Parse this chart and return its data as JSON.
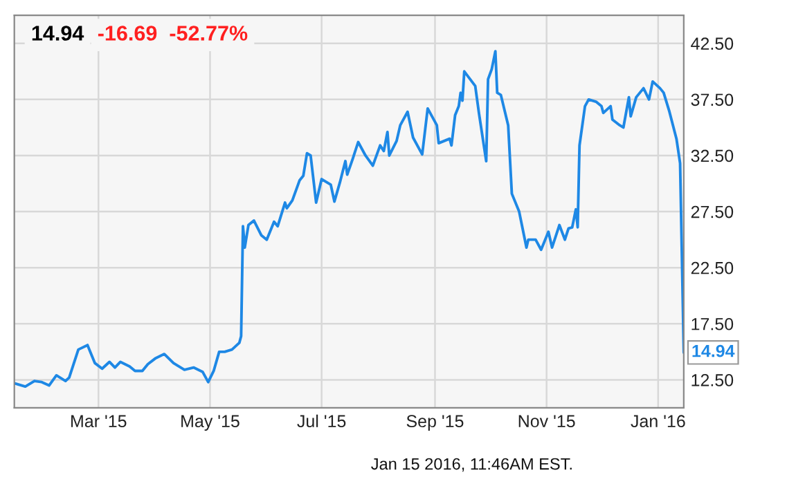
{
  "chart_data": {
    "type": "line",
    "title": "14.94",
    "subtitle": "-16.69  -52.77%",
    "annotations": [
      "Jan 15 2016, 11:46AM EST."
    ],
    "x": [
      "2015-01-14",
      "2015-01-20",
      "2015-01-25",
      "2015-01-29",
      "2015-02-02",
      "2015-02-06",
      "2015-02-11",
      "2015-02-13",
      "2015-02-18",
      "2015-02-23",
      "2015-02-27",
      "2015-03-03",
      "2015-03-07",
      "2015-03-10",
      "2015-03-13",
      "2015-03-18",
      "2015-03-21",
      "2015-03-25",
      "2015-03-28",
      "2015-04-01",
      "2015-04-06",
      "2015-04-11",
      "2015-04-17",
      "2015-04-22",
      "2015-04-27",
      "2015-04-30",
      "2015-05-03",
      "2015-05-06",
      "2015-05-09",
      "2015-05-13",
      "2015-05-17",
      "2015-05-18",
      "2015-05-19",
      "2015-05-20",
      "2015-05-22",
      "2015-05-25",
      "2015-05-29",
      "2015-06-01",
      "2015-06-05",
      "2015-06-07",
      "2015-06-11",
      "2015-06-12",
      "2015-06-15",
      "2015-06-19",
      "2015-06-21",
      "2015-06-23",
      "2015-06-25",
      "2015-06-28",
      "2015-07-01",
      "2015-07-06",
      "2015-07-08",
      "2015-07-11",
      "2015-07-14",
      "2015-07-15",
      "2015-07-18",
      "2015-07-21",
      "2015-07-25",
      "2015-07-29",
      "2015-08-02",
      "2015-08-04",
      "2015-08-06",
      "2015-08-07",
      "2015-08-11",
      "2015-08-13",
      "2015-08-17",
      "2015-08-20",
      "2015-08-25",
      "2015-08-28",
      "2015-09-02",
      "2015-09-03",
      "2015-09-09",
      "2015-09-10",
      "2015-09-12",
      "2015-09-14",
      "2015-09-15",
      "2015-09-16",
      "2015-09-17",
      "2015-09-23",
      "2015-09-25",
      "2015-09-29",
      "2015-09-30",
      "2015-10-02",
      "2015-10-04",
      "2015-10-05",
      "2015-10-07",
      "2015-10-11",
      "2015-10-13",
      "2015-10-17",
      "2015-10-21",
      "2015-10-22",
      "2015-10-26",
      "2015-10-29",
      "2015-11-02",
      "2015-11-04",
      "2015-11-08",
      "2015-11-11",
      "2015-11-13",
      "2015-11-15",
      "2015-11-17",
      "2015-11-18",
      "2015-11-19",
      "2015-11-22",
      "2015-11-24",
      "2015-11-28",
      "2015-12-01",
      "2015-12-02",
      "2015-12-06",
      "2015-12-07",
      "2015-12-11",
      "2015-12-13",
      "2015-12-16",
      "2015-12-17",
      "2015-12-20",
      "2015-12-24",
      "2015-12-27",
      "2015-12-29",
      "2016-01-02",
      "2016-01-04",
      "2016-01-07",
      "2016-01-11",
      "2016-01-13",
      "2016-01-15"
    ],
    "series": [
      {
        "color": "#1e88e5",
        "values": [
          12.2,
          11.9,
          12.4,
          12.3,
          12.0,
          12.9,
          12.4,
          12.7,
          15.2,
          15.6,
          14.0,
          13.5,
          14.1,
          13.6,
          14.1,
          13.7,
          13.3,
          13.3,
          13.9,
          14.4,
          14.8,
          14.0,
          13.4,
          13.6,
          13.2,
          12.3,
          13.3,
          15.0,
          15.0,
          15.2,
          15.8,
          16.4,
          26.2,
          24.3,
          26.3,
          26.7,
          25.4,
          25.0,
          26.6,
          26.2,
          28.3,
          27.8,
          28.5,
          30.3,
          30.7,
          32.7,
          32.5,
          28.3,
          30.4,
          29.9,
          28.4,
          30.1,
          32.0,
          30.8,
          32.2,
          33.7,
          32.5,
          31.6,
          33.4,
          32.9,
          34.6,
          32.5,
          33.8,
          35.2,
          36.4,
          34.1,
          32.6,
          36.7,
          35.2,
          33.6,
          34.0,
          33.4,
          36.1,
          36.9,
          38.1,
          37.4,
          40.0,
          38.7,
          36.3,
          32.0,
          39.3,
          40.2,
          41.8,
          38.1,
          37.9,
          35.2,
          29.1,
          27.5,
          24.3,
          25.0,
          25.0,
          24.1,
          25.7,
          24.3,
          26.3,
          25.0,
          26.0,
          26.1,
          27.7,
          26.1,
          33.4,
          36.9,
          37.5,
          37.3,
          36.9,
          36.3,
          36.9,
          35.7,
          35.2,
          35.0,
          37.7,
          36.0,
          37.7,
          38.5,
          37.5,
          39.1,
          38.5,
          38.1,
          36.5,
          34.0,
          31.8,
          14.94
        ],
        "value_labels": [
          null,
          null,
          null,
          null,
          null,
          null,
          null,
          null,
          null,
          null,
          null,
          null,
          null,
          null,
          null,
          null,
          null,
          null,
          null,
          null,
          null,
          null,
          null,
          null,
          null,
          null,
          null,
          null,
          null,
          null,
          null,
          null,
          null,
          null,
          null,
          null,
          null,
          null,
          null,
          null,
          null,
          null,
          null,
          null,
          null,
          null,
          null,
          null,
          null,
          null,
          null,
          null,
          null,
          null,
          null,
          null,
          null,
          null,
          null,
          null,
          null,
          null,
          null,
          null,
          null,
          null,
          null,
          null,
          null,
          null,
          null,
          null,
          null,
          null,
          null,
          null,
          null,
          null,
          null,
          null,
          null,
          null,
          null,
          null,
          null,
          null,
          null,
          null,
          null,
          null,
          null,
          null,
          null,
          null,
          null,
          null,
          null,
          null,
          null,
          null,
          null,
          null,
          null,
          null,
          null,
          null,
          null,
          null,
          null,
          null,
          null,
          null,
          null,
          null,
          null,
          null,
          null,
          null,
          null,
          null,
          null,
          "14.94"
        ]
      }
    ],
    "xlim": [
      "2015-01-14",
      "2016-01-15"
    ],
    "xticks": [
      {
        "value": "2015-03-01",
        "label": "Mar '15"
      },
      {
        "value": "2015-05-01",
        "label": "May '15"
      },
      {
        "value": "2015-07-01",
        "label": "Jul '15"
      },
      {
        "value": "2015-09-01",
        "label": "Sep '15"
      },
      {
        "value": "2015-11-01",
        "label": "Nov '15"
      },
      {
        "value": "2016-01-01",
        "label": "Jan '16"
      }
    ],
    "ylim": [
      10,
      45
    ],
    "yticks": [
      {
        "value": 12.5,
        "label": "12.50"
      },
      {
        "value": 17.5,
        "label": "17.50"
      },
      {
        "value": 22.5,
        "label": "22.50"
      },
      {
        "value": 27.5,
        "label": "27.50"
      },
      {
        "value": 32.5,
        "label": "32.50"
      },
      {
        "value": 37.5,
        "label": "37.50"
      },
      {
        "value": 42.5,
        "label": "42.50"
      }
    ],
    "grid": true,
    "legend": false,
    "marker": "none",
    "line_style": "solid"
  }
}
